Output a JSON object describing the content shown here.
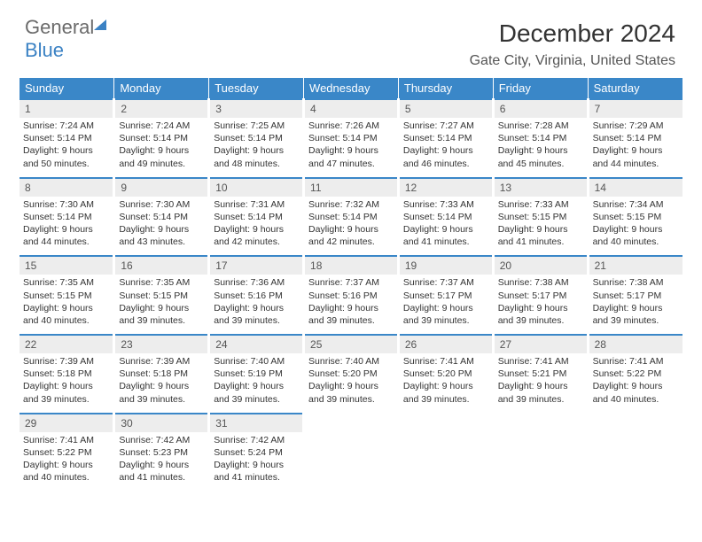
{
  "logo": {
    "text1": "General",
    "text2": "Blue"
  },
  "title": "December 2024",
  "subtitle": "Gate City, Virginia, United States",
  "colors": {
    "header_bg": "#3a87c8",
    "header_text": "#ffffff",
    "daynum_bg": "#ededed",
    "daynum_border": "#3a87c8",
    "body_text": "#333333",
    "logo_gray": "#6b6b6b",
    "logo_blue": "#3b82c4"
  },
  "headers": [
    "Sunday",
    "Monday",
    "Tuesday",
    "Wednesday",
    "Thursday",
    "Friday",
    "Saturday"
  ],
  "weeks": [
    [
      {
        "n": "1",
        "sr": "7:24 AM",
        "ss": "5:14 PM",
        "dl": "9 hours and 50 minutes."
      },
      {
        "n": "2",
        "sr": "7:24 AM",
        "ss": "5:14 PM",
        "dl": "9 hours and 49 minutes."
      },
      {
        "n": "3",
        "sr": "7:25 AM",
        "ss": "5:14 PM",
        "dl": "9 hours and 48 minutes."
      },
      {
        "n": "4",
        "sr": "7:26 AM",
        "ss": "5:14 PM",
        "dl": "9 hours and 47 minutes."
      },
      {
        "n": "5",
        "sr": "7:27 AM",
        "ss": "5:14 PM",
        "dl": "9 hours and 46 minutes."
      },
      {
        "n": "6",
        "sr": "7:28 AM",
        "ss": "5:14 PM",
        "dl": "9 hours and 45 minutes."
      },
      {
        "n": "7",
        "sr": "7:29 AM",
        "ss": "5:14 PM",
        "dl": "9 hours and 44 minutes."
      }
    ],
    [
      {
        "n": "8",
        "sr": "7:30 AM",
        "ss": "5:14 PM",
        "dl": "9 hours and 44 minutes."
      },
      {
        "n": "9",
        "sr": "7:30 AM",
        "ss": "5:14 PM",
        "dl": "9 hours and 43 minutes."
      },
      {
        "n": "10",
        "sr": "7:31 AM",
        "ss": "5:14 PM",
        "dl": "9 hours and 42 minutes."
      },
      {
        "n": "11",
        "sr": "7:32 AM",
        "ss": "5:14 PM",
        "dl": "9 hours and 42 minutes."
      },
      {
        "n": "12",
        "sr": "7:33 AM",
        "ss": "5:14 PM",
        "dl": "9 hours and 41 minutes."
      },
      {
        "n": "13",
        "sr": "7:33 AM",
        "ss": "5:15 PM",
        "dl": "9 hours and 41 minutes."
      },
      {
        "n": "14",
        "sr": "7:34 AM",
        "ss": "5:15 PM",
        "dl": "9 hours and 40 minutes."
      }
    ],
    [
      {
        "n": "15",
        "sr": "7:35 AM",
        "ss": "5:15 PM",
        "dl": "9 hours and 40 minutes."
      },
      {
        "n": "16",
        "sr": "7:35 AM",
        "ss": "5:15 PM",
        "dl": "9 hours and 39 minutes."
      },
      {
        "n": "17",
        "sr": "7:36 AM",
        "ss": "5:16 PM",
        "dl": "9 hours and 39 minutes."
      },
      {
        "n": "18",
        "sr": "7:37 AM",
        "ss": "5:16 PM",
        "dl": "9 hours and 39 minutes."
      },
      {
        "n": "19",
        "sr": "7:37 AM",
        "ss": "5:17 PM",
        "dl": "9 hours and 39 minutes."
      },
      {
        "n": "20",
        "sr": "7:38 AM",
        "ss": "5:17 PM",
        "dl": "9 hours and 39 minutes."
      },
      {
        "n": "21",
        "sr": "7:38 AM",
        "ss": "5:17 PM",
        "dl": "9 hours and 39 minutes."
      }
    ],
    [
      {
        "n": "22",
        "sr": "7:39 AM",
        "ss": "5:18 PM",
        "dl": "9 hours and 39 minutes."
      },
      {
        "n": "23",
        "sr": "7:39 AM",
        "ss": "5:18 PM",
        "dl": "9 hours and 39 minutes."
      },
      {
        "n": "24",
        "sr": "7:40 AM",
        "ss": "5:19 PM",
        "dl": "9 hours and 39 minutes."
      },
      {
        "n": "25",
        "sr": "7:40 AM",
        "ss": "5:20 PM",
        "dl": "9 hours and 39 minutes."
      },
      {
        "n": "26",
        "sr": "7:41 AM",
        "ss": "5:20 PM",
        "dl": "9 hours and 39 minutes."
      },
      {
        "n": "27",
        "sr": "7:41 AM",
        "ss": "5:21 PM",
        "dl": "9 hours and 39 minutes."
      },
      {
        "n": "28",
        "sr": "7:41 AM",
        "ss": "5:22 PM",
        "dl": "9 hours and 40 minutes."
      }
    ],
    [
      {
        "n": "29",
        "sr": "7:41 AM",
        "ss": "5:22 PM",
        "dl": "9 hours and 40 minutes."
      },
      {
        "n": "30",
        "sr": "7:42 AM",
        "ss": "5:23 PM",
        "dl": "9 hours and 41 minutes."
      },
      {
        "n": "31",
        "sr": "7:42 AM",
        "ss": "5:24 PM",
        "dl": "9 hours and 41 minutes."
      },
      null,
      null,
      null,
      null
    ]
  ],
  "labels": {
    "sunrise": "Sunrise:",
    "sunset": "Sunset:",
    "daylight": "Daylight:"
  }
}
